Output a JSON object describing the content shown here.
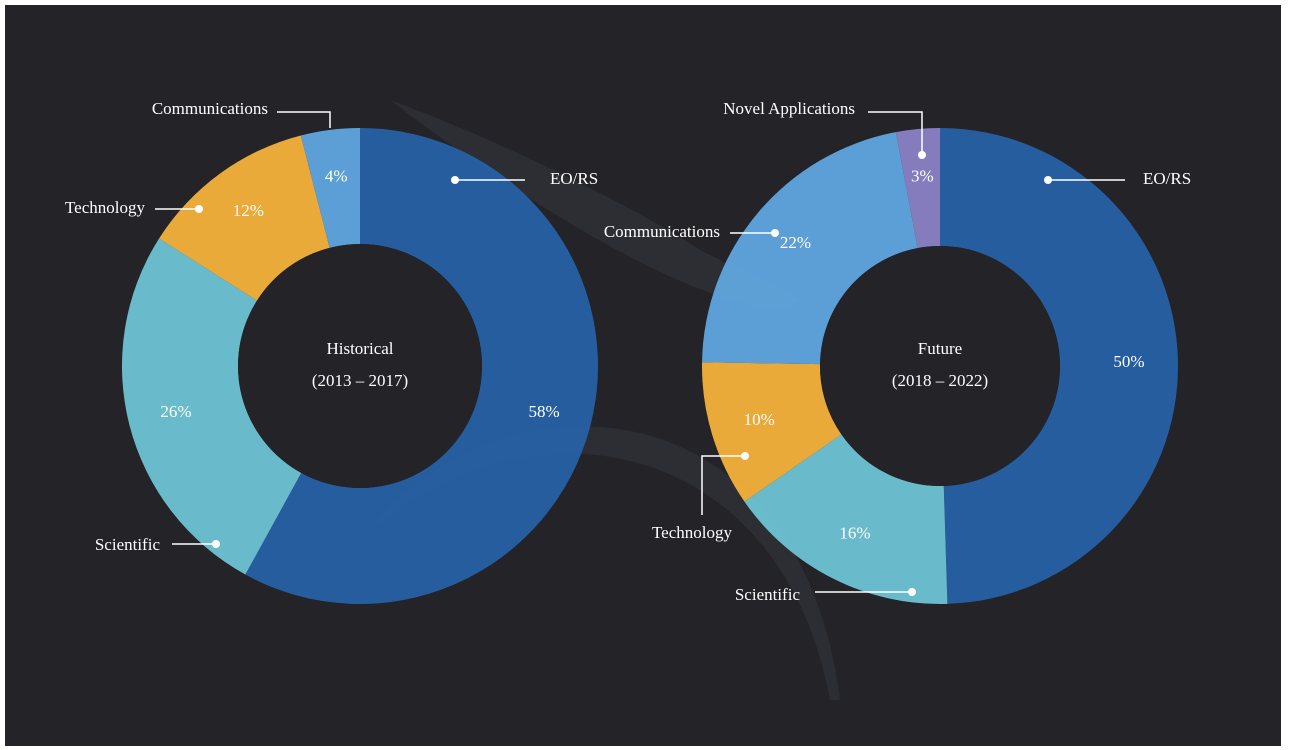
{
  "chart_data": [
    {
      "type": "donut",
      "title": "Historical",
      "subtitle": "(2013 – 2017)",
      "categories": [
        "EO/RS",
        "Scientific",
        "Technology",
        "Communications"
      ],
      "values": [
        58,
        26,
        12,
        4
      ],
      "value_labels": [
        "58%",
        "26%",
        "12%",
        "4%"
      ],
      "colors": [
        "#2761a5",
        "#6ec4d5",
        "#f4b23b",
        "#5fa6df"
      ]
    },
    {
      "type": "donut",
      "title": "Future",
      "subtitle": "(2018 – 2022)",
      "categories": [
        "EO/RS",
        "Scientific",
        "Technology",
        "Communications",
        "Novel Applications"
      ],
      "values": [
        50,
        16,
        10,
        22,
        3
      ],
      "value_labels": [
        "50%",
        "16%",
        "10%",
        "22%",
        "3%"
      ],
      "colors": [
        "#2761a5",
        "#6ec4d5",
        "#f4b23b",
        "#5fa6df",
        "#8b82c6"
      ]
    }
  ]
}
